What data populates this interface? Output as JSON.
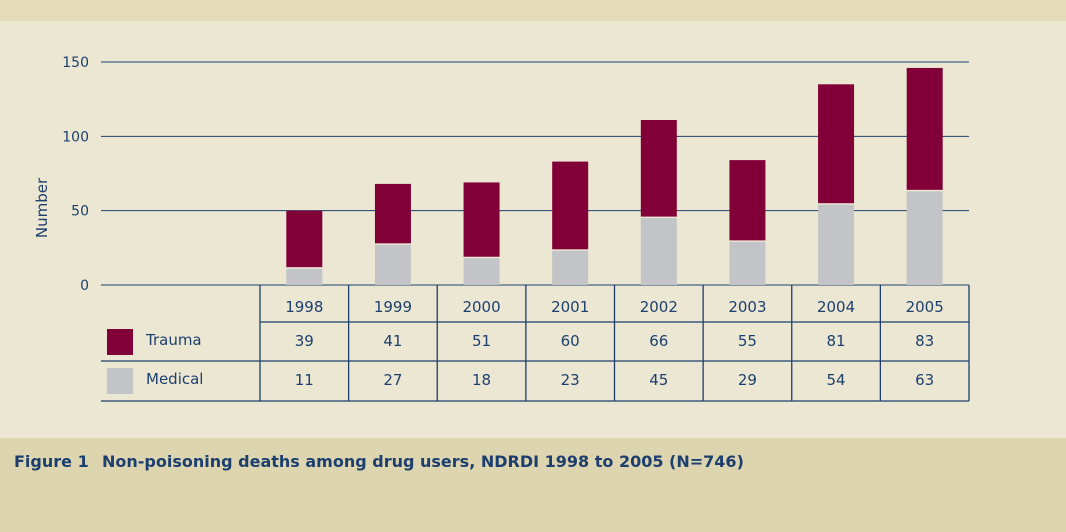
{
  "figure": {
    "label": "Figure 1",
    "title": "Non-poisoning deaths among drug users, NDRDI 1998 to 2005 (N=746)"
  },
  "colors": {
    "background": "#ece7d2",
    "top_band": "#e4dcb9",
    "caption_band": "#ddd4b0",
    "trauma": "#820038",
    "medical": "#c3c4c7",
    "grid": "#1c3f6e",
    "text": "#1c3f6e"
  },
  "chart_data": {
    "type": "bar",
    "stacked": true,
    "categories": [
      "1998",
      "1999",
      "2000",
      "2001",
      "2002",
      "2003",
      "2004",
      "2005"
    ],
    "series": [
      {
        "name": "Medical",
        "values": [
          11,
          27,
          18,
          23,
          45,
          29,
          54,
          63
        ]
      },
      {
        "name": "Trauma",
        "values": [
          39,
          41,
          51,
          60,
          66,
          55,
          81,
          83
        ]
      }
    ],
    "ylabel": "Number",
    "xlabel": "",
    "ylim": [
      0,
      150
    ],
    "yticks": [
      0,
      50,
      100,
      150
    ],
    "grid": true,
    "legend": "data table below chart",
    "table_rows": [
      "Trauma",
      "Medical"
    ]
  }
}
